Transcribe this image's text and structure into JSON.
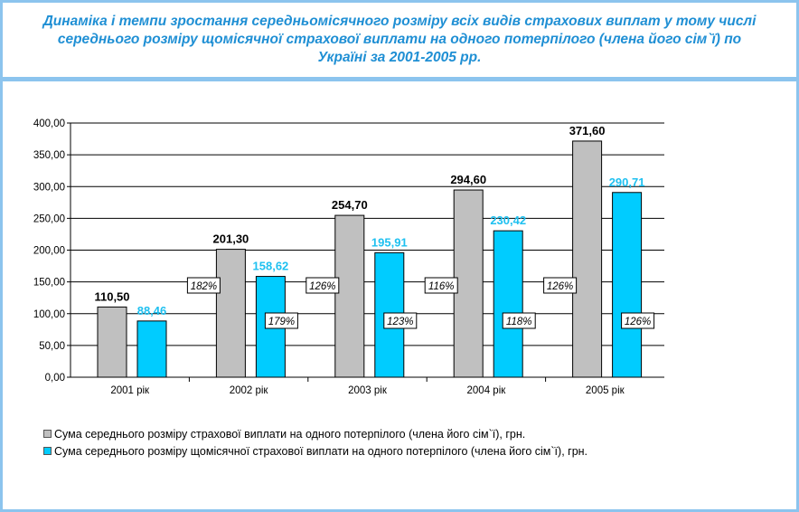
{
  "title": "Динаміка і темпи зростання середньомісячного розміру всіх видів страхових виплат у тому числі середнього розміру щомісячної страхової виплати на одного потерпілого (члена його сім`ї) по Україні за 2001-2005 рр.",
  "colors": {
    "frame": "#8cc4ee",
    "title": "#1f8fd4",
    "series1": "#c0c0c0",
    "series2": "#00ccff",
    "series2_label": "#1ec0f0"
  },
  "chart_data": {
    "type": "bar",
    "categories": [
      "2001 рік",
      "2002 рік",
      "2003 рік",
      "2004 рік",
      "2005 рік"
    ],
    "series": [
      {
        "name": "Сума середнього розміру страхової виплати на одного потерпілого (члена його сім`ї), грн.",
        "values": [
          110.5,
          201.3,
          254.7,
          294.6,
          371.6
        ],
        "labels": [
          "110,50",
          "201,30",
          "254,70",
          "294,60",
          "371,60"
        ],
        "growth": [
          null,
          "182%",
          "126%",
          "116%",
          "126%"
        ]
      },
      {
        "name": "Сума середнього розміру щомісячної страхової виплати на одного потерпілого (члена його сім`ї), грн.",
        "values": [
          88.46,
          158.62,
          195.91,
          230.42,
          290.71
        ],
        "labels": [
          "88,46",
          "158,62",
          "195,91",
          "230,42",
          "290,71"
        ],
        "growth": [
          null,
          "179%",
          "123%",
          "118%",
          "126%"
        ]
      }
    ],
    "yticks": [
      "0,00",
      "50,00",
      "100,00",
      "150,00",
      "200,00",
      "250,00",
      "300,00",
      "350,00",
      "400,00"
    ],
    "ylim": [
      0,
      400
    ],
    "grid": true,
    "legend_position": "bottom"
  }
}
